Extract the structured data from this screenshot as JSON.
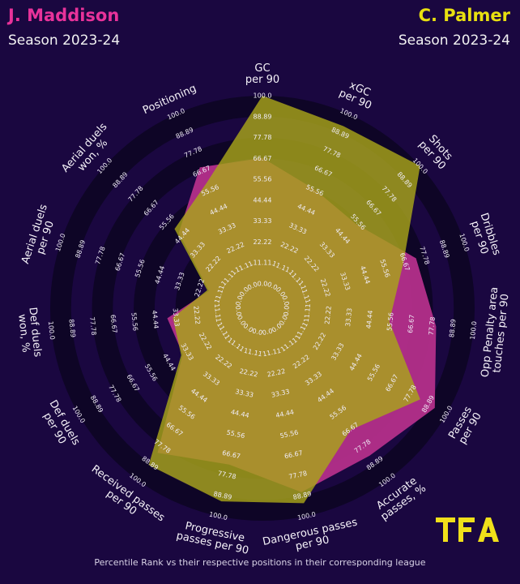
{
  "colors": {
    "background": "#1a0740",
    "ring_dark": "#0e0526",
    "player_1": "#b42f8a",
    "player_2": "#a8a51a",
    "player_1_title": "#e8329a",
    "player_2_title": "#e8e010",
    "logo": "#f0e01a"
  },
  "players": [
    {
      "name": "J. Maddison",
      "season": "Season 2023-24",
      "color": "#e8329a"
    },
    {
      "name": "C. Palmer",
      "season": "Season 2023-24",
      "color": "#e8e010"
    }
  ],
  "logo": {
    "text": "TFA"
  },
  "footnote": "Percentile Rank vs their respective positions in their corresponding league",
  "chart_data": {
    "type": "radar",
    "title": "",
    "axes": [
      "GC\nper 90",
      "xGC\nper 90",
      "Shots\nper 90",
      "Dribbles\nper 90",
      "Opp Penalty area\ntouches per 90",
      "Passes\nper 90",
      "Accurate\npasses, %",
      "Dangerous passes\nper 90",
      "Progressive\npasses per 90",
      "Received passes\nper 90",
      "Def duels\nper 90",
      "Def duels\nwon, %",
      "Aerial duels\nper 90",
      "Aerial duels\nwon, %",
      "Positioning"
    ],
    "rings": [
      "0.0",
      "11.11",
      "22.22",
      "33.33",
      "44.44",
      "55.56",
      "66.67",
      "77.78",
      "88.89",
      "100.0"
    ],
    "range": [
      0,
      100
    ],
    "series": [
      {
        "name": "J. Maddison",
        "values": [
          67,
          56,
          54,
          73,
          80,
          93,
          84,
          87,
          72,
          82,
          36,
          38,
          17,
          47,
          69
        ]
      },
      {
        "name": "C. Palmer",
        "values": [
          100,
          93,
          100,
          66,
          55,
          84,
          67,
          93,
          92,
          90,
          37,
          35,
          18,
          50,
          60
        ]
      }
    ]
  }
}
